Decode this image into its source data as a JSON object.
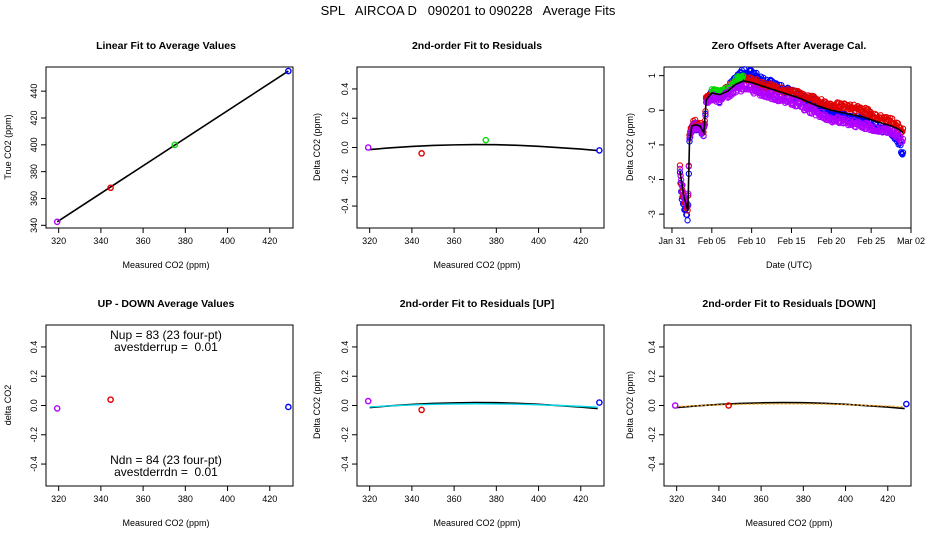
{
  "figure_title": "SPL   AIRCOA D   090201 to 090228   Average Fits",
  "colors": {
    "purple": "#b000ff",
    "red": "#e00000",
    "green": "#00dd00",
    "blue": "#0000ff",
    "cyan": "#00d8e8",
    "orange": "#ffa500",
    "black": "#000000"
  },
  "chart_data": [
    {
      "id": "p1",
      "type": "scatter",
      "title": "Linear Fit to Average Values",
      "xlabel": "Measured CO2 (ppm)",
      "ylabel": "True CO2 (ppm)",
      "xlim": [
        314,
        431
      ],
      "ylim": [
        338,
        458
      ],
      "xticks": [
        320,
        340,
        360,
        380,
        400,
        420
      ],
      "xtick_labels": [
        "320",
        "340",
        "360",
        "380",
        "400",
        "420"
      ],
      "yticks": [
        340,
        360,
        380,
        400,
        420,
        440
      ],
      "ytick_labels": [
        "340",
        "360",
        "380",
        "400",
        "420",
        "440"
      ],
      "points": [
        {
          "x": 319.3,
          "y": 342.6,
          "color": "purple"
        },
        {
          "x": 344.6,
          "y": 368.0,
          "color": "red"
        },
        {
          "x": 375.0,
          "y": 400.0,
          "color": "green"
        },
        {
          "x": 428.8,
          "y": 455.0,
          "color": "blue"
        }
      ],
      "lines": [
        {
          "color": "black",
          "x": [
            319.3,
            428.8
          ],
          "y": [
            342.6,
            455.0
          ]
        }
      ]
    },
    {
      "id": "p2",
      "type": "scatter",
      "title": "2nd-order Fit to Residuals",
      "xlabel": "Measured CO2 (ppm)",
      "ylabel": "Delta CO2 (ppm)",
      "xlim": [
        314,
        431
      ],
      "ylim": [
        -0.55,
        0.55
      ],
      "xticks": [
        320,
        340,
        360,
        380,
        400,
        420
      ],
      "xtick_labels": [
        "320",
        "340",
        "360",
        "380",
        "400",
        "420"
      ],
      "yticks": [
        -0.4,
        -0.2,
        0.0,
        0.2,
        0.4
      ],
      "ytick_labels": [
        "-0.4",
        "-0.2",
        "0.0",
        "0.2",
        "0.4"
      ],
      "points": [
        {
          "x": 319.3,
          "y": 0.0,
          "color": "purple"
        },
        {
          "x": 344.6,
          "y": -0.04,
          "color": "red"
        },
        {
          "x": 375.0,
          "y": 0.05,
          "color": "green"
        },
        {
          "x": 428.8,
          "y": -0.02,
          "color": "blue"
        }
      ],
      "lines": [
        {
          "color": "black",
          "x": [
            320,
            330,
            340,
            350,
            360,
            370,
            380,
            390,
            400,
            410,
            420,
            428
          ],
          "y": [
            -0.014,
            -0.002,
            0.007,
            0.014,
            0.018,
            0.02,
            0.019,
            0.015,
            0.008,
            -0.001,
            -0.011,
            -0.021
          ]
        }
      ]
    },
    {
      "id": "p3",
      "type": "scatter",
      "title": "Zero Offsets After Average Cal.",
      "xlabel": "Date (UTC)",
      "ylabel": "Delta CO2 (ppm)",
      "xlim": [
        -1,
        30
      ],
      "ylim": [
        -3.4,
        1.25
      ],
      "xticks": [
        0,
        5,
        10,
        15,
        20,
        25,
        30
      ],
      "xtick_labels": [
        "Jan 31",
        "Feb 05",
        "Feb 10",
        "Feb 15",
        "Feb 20",
        "Feb 25",
        "Mar 02"
      ],
      "yticks": [
        -3,
        -2,
        -1,
        0,
        1
      ],
      "ytick_labels": [
        "-3",
        "-2",
        "-1",
        "0",
        "1"
      ],
      "dense_series": [
        {
          "name": "blue",
          "color": "blue",
          "knots_x": [
            1.0,
            1.2,
            1.5,
            1.8,
            2.0,
            2.2,
            2.5,
            3.0,
            3.5,
            4.0,
            4.3,
            5.0,
            6.0,
            7.0,
            8.0,
            9.0,
            10.0,
            12.0,
            14.0,
            16.0,
            18.0,
            20.0,
            22.0,
            24.0,
            26.0,
            27.5,
            28.5,
            29.0
          ],
          "knots_y": [
            -1.8,
            -2.4,
            -2.8,
            -3.0,
            -3.2,
            -1.0,
            -0.5,
            -0.45,
            -0.5,
            -0.7,
            0.3,
            0.55,
            0.35,
            0.6,
            0.9,
            1.1,
            1.05,
            0.8,
            0.6,
            0.4,
            0.2,
            0.0,
            -0.25,
            -0.3,
            -0.5,
            -0.6,
            -0.9,
            -1.3
          ],
          "spread": 0.12,
          "step": 0.08
        },
        {
          "name": "red",
          "color": "red",
          "knots_x": [
            1.0,
            1.2,
            1.5,
            1.8,
            2.0,
            2.2,
            2.5,
            3.0,
            3.5,
            4.0,
            4.3,
            5.0,
            6.0,
            7.0,
            8.0,
            9.0,
            10.0,
            12.0,
            14.0,
            16.0,
            18.0,
            20.0,
            22.0,
            24.0,
            26.0,
            27.5,
            28.5,
            29.0
          ],
          "knots_y": [
            -1.6,
            -2.2,
            -2.6,
            -2.8,
            -2.9,
            -0.8,
            -0.4,
            -0.35,
            -0.4,
            -0.6,
            0.35,
            0.5,
            0.45,
            0.6,
            0.8,
            0.9,
            0.85,
            0.7,
            0.55,
            0.45,
            0.3,
            0.15,
            0.1,
            0.0,
            -0.2,
            -0.3,
            -0.5,
            -0.6
          ],
          "spread": 0.1,
          "step": 0.08
        },
        {
          "name": "green",
          "color": "green",
          "knots_x": [
            5.0,
            5.5,
            6.0,
            6.5,
            7.0,
            7.5,
            8.0,
            8.5,
            9.0
          ],
          "knots_y": [
            0.6,
            0.55,
            0.5,
            0.55,
            0.6,
            0.7,
            0.85,
            0.95,
            1.0
          ],
          "spread": 0.08,
          "step": 0.08
        },
        {
          "name": "purple",
          "color": "purple",
          "knots_x": [
            1.0,
            1.5,
            2.0,
            2.2,
            2.5,
            3.0,
            3.5,
            4.0,
            4.3,
            5.0,
            6.0,
            7.0,
            8.0,
            9.0,
            10.0,
            12.0,
            14.0,
            16.0,
            18.0,
            20.0,
            22.0,
            24.0,
            26.0,
            27.5,
            28.5,
            29.0
          ],
          "knots_y": [
            -1.7,
            -2.5,
            -2.8,
            -0.9,
            -0.5,
            -0.45,
            -0.5,
            -0.7,
            0.2,
            0.4,
            0.3,
            0.45,
            0.6,
            0.65,
            0.6,
            0.45,
            0.3,
            0.15,
            -0.05,
            -0.25,
            -0.35,
            -0.45,
            -0.55,
            -0.6,
            -0.75,
            -0.9
          ],
          "spread": 0.1,
          "step": 0.08
        }
      ],
      "lines": [
        {
          "color": "black",
          "x": [
            1.0,
            1.5,
            2.0,
            2.2,
            2.5,
            3.0,
            3.5,
            4.0,
            4.3,
            5.0,
            6.0,
            7.0,
            8.0,
            9.0,
            10.0,
            12.0,
            14.0,
            16.0,
            18.0,
            20.0,
            22.0,
            24.0,
            26.0,
            27.5,
            28.5,
            29.0
          ],
          "y": [
            -1.75,
            -2.5,
            -2.9,
            -0.9,
            -0.45,
            -0.42,
            -0.45,
            -0.65,
            0.3,
            0.5,
            0.45,
            0.55,
            0.75,
            0.85,
            0.8,
            0.65,
            0.5,
            0.35,
            0.15,
            0.0,
            -0.1,
            -0.2,
            -0.35,
            -0.45,
            -0.55,
            -0.65
          ]
        }
      ]
    },
    {
      "id": "p4",
      "type": "scatter",
      "title": "UP - DOWN Average Values",
      "xlabel": "Measured CO2 (ppm)",
      "ylabel": "delta CO2",
      "xlim": [
        314,
        431
      ],
      "ylim": [
        -0.55,
        0.55
      ],
      "xticks": [
        320,
        340,
        360,
        380,
        400,
        420
      ],
      "xtick_labels": [
        "320",
        "340",
        "360",
        "380",
        "400",
        "420"
      ],
      "yticks": [
        -0.4,
        -0.2,
        0.0,
        0.2,
        0.4
      ],
      "ytick_labels": [
        "-0.4",
        "-0.2",
        "0.0",
        "0.2",
        "0.4"
      ],
      "points": [
        {
          "x": 319.3,
          "y": -0.02,
          "color": "purple"
        },
        {
          "x": 344.6,
          "y": 0.04,
          "color": "red"
        },
        {
          "x": 428.8,
          "y": -0.01,
          "color": "blue"
        }
      ],
      "annotations": [
        {
          "text": "Nup = 83 (23 four-pt)",
          "position": "top"
        },
        {
          "text": "avestderrup =  0.01",
          "position": "top-second"
        },
        {
          "text": "Ndn = 84 (23 four-pt)",
          "position": "bottom"
        },
        {
          "text": "avestderrdn =  0.01",
          "position": "bottom-second"
        }
      ]
    },
    {
      "id": "p5",
      "type": "scatter",
      "title": "2nd-order Fit to Residuals [UP]",
      "xlabel": "Measured CO2 (ppm)",
      "ylabel": "Delta CO2 (ppm)",
      "xlim": [
        314,
        431
      ],
      "ylim": [
        -0.55,
        0.55
      ],
      "xticks": [
        320,
        340,
        360,
        380,
        400,
        420
      ],
      "xtick_labels": [
        "320",
        "340",
        "360",
        "380",
        "400",
        "420"
      ],
      "yticks": [
        -0.4,
        -0.2,
        0.0,
        0.2,
        0.4
      ],
      "ytick_labels": [
        "-0.4",
        "-0.2",
        "0.0",
        "0.2",
        "0.4"
      ],
      "points": [
        {
          "x": 319.3,
          "y": 0.03,
          "color": "purple"
        },
        {
          "x": 344.6,
          "y": -0.03,
          "color": "red"
        },
        {
          "x": 428.8,
          "y": 0.02,
          "color": "blue"
        }
      ],
      "lines": [
        {
          "color": "black",
          "x": [
            320,
            330,
            340,
            350,
            360,
            370,
            380,
            390,
            400,
            410,
            420,
            428
          ],
          "y": [
            -0.014,
            -0.002,
            0.007,
            0.014,
            0.018,
            0.02,
            0.019,
            0.015,
            0.008,
            -0.001,
            -0.011,
            -0.021
          ]
        },
        {
          "color": "cyan",
          "x": [
            320,
            330,
            340,
            350,
            360,
            370,
            380,
            390,
            400,
            410,
            420,
            428
          ],
          "y": [
            -0.01,
            -0.002,
            0.004,
            0.008,
            0.011,
            0.012,
            0.011,
            0.009,
            0.005,
            0.0,
            -0.006,
            -0.012
          ]
        }
      ]
    },
    {
      "id": "p6",
      "type": "scatter",
      "title": "2nd-order Fit to Residuals [DOWN]",
      "xlabel": "Measured CO2 (ppm)",
      "ylabel": "Delta CO2 (ppm)",
      "xlim": [
        314,
        431
      ],
      "ylim": [
        -0.55,
        0.55
      ],
      "xticks": [
        320,
        340,
        360,
        380,
        400,
        420
      ],
      "xtick_labels": [
        "320",
        "340",
        "360",
        "380",
        "400",
        "420"
      ],
      "yticks": [
        -0.4,
        -0.2,
        0.0,
        0.2,
        0.4
      ],
      "ytick_labels": [
        "-0.4",
        "-0.2",
        "0.0",
        "0.2",
        "0.4"
      ],
      "points": [
        {
          "x": 319.3,
          "y": 0.0,
          "color": "purple"
        },
        {
          "x": 344.6,
          "y": 0.0,
          "color": "red"
        },
        {
          "x": 428.8,
          "y": 0.01,
          "color": "blue"
        }
      ],
      "lines": [
        {
          "color": "black",
          "x": [
            320,
            330,
            340,
            350,
            360,
            370,
            380,
            390,
            400,
            410,
            420,
            428
          ],
          "y": [
            -0.014,
            -0.002,
            0.007,
            0.014,
            0.018,
            0.02,
            0.019,
            0.015,
            0.008,
            -0.001,
            -0.011,
            -0.021
          ]
        },
        {
          "color": "orange",
          "dashed": true,
          "x": [
            320,
            330,
            340,
            350,
            360,
            370,
            380,
            390,
            400,
            410,
            420,
            428
          ],
          "y": [
            -0.008,
            -0.001,
            0.004,
            0.008,
            0.01,
            0.011,
            0.011,
            0.009,
            0.006,
            0.001,
            -0.004,
            -0.01
          ]
        }
      ]
    }
  ]
}
